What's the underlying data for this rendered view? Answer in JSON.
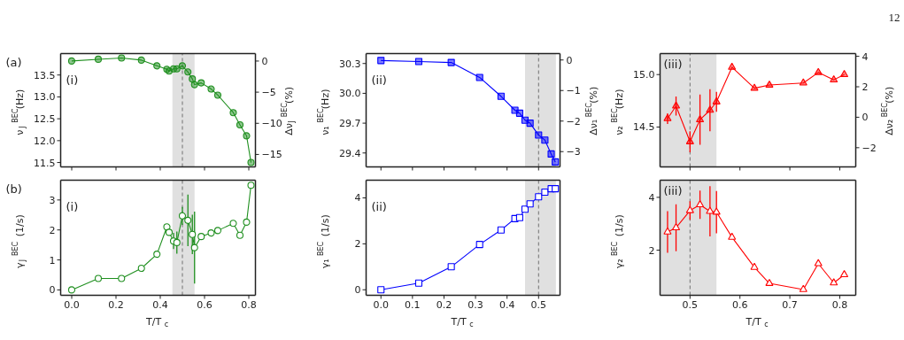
{
  "chart_data": [
    {
      "type": "line",
      "marker": "circle",
      "ylabel": "ν$_{J}$$^{BEC}$(Hz)",
      "y2label": "Δν$_{J}$$^{BEC}$(%)",
      "annotations": [
        "(a)",
        "(i)"
      ],
      "tick_labels": "y",
      "x": [
        0,
        0.12,
        0.225,
        0.315,
        0.385,
        0.43,
        0.44,
        0.46,
        0.475,
        0.5,
        0.525,
        0.545,
        0.555,
        0.585,
        0.63,
        0.66,
        0.73,
        0.76,
        0.79,
        0.81
      ],
      "series": [
        {
          "color": "#1f8f1f",
          "values": [
            13.82,
            13.86,
            13.89,
            13.84,
            13.71,
            13.63,
            13.59,
            13.64,
            13.64,
            13.71,
            13.57,
            13.41,
            13.28,
            13.32,
            13.18,
            13.04,
            12.64,
            12.36,
            12.11,
            11.5
          ]
        }
      ],
      "xlim": [
        -0.05,
        0.83
      ],
      "xticks": [
        {
          "value": 0,
          "label": null
        },
        {
          "value": 0.2,
          "label": null
        },
        {
          "value": 0.4,
          "label": null
        },
        {
          "value": 0.6,
          "label": null
        },
        {
          "value": 0.8,
          "label": null
        }
      ],
      "ylim": [
        11.4,
        13.99
      ],
      "yticks": [
        11.5,
        {
          "value": 12,
          "label": "12.0"
        },
        12.5,
        {
          "value": 13,
          "label": "13.0"
        },
        13.5
      ],
      "y2lim": [
        -17.0,
        1.2
      ],
      "y2ticks": [
        0,
        {
          "value": -5,
          "label": "−5"
        },
        {
          "value": -10,
          "label": "−10"
        },
        {
          "value": -15,
          "label": "−15"
        }
      ],
      "bands": [
        {
          "axis": "x",
          "from": 0.455,
          "to": 0.555,
          "color": "#e0e0e0"
        }
      ],
      "ref_lines": [
        {
          "axis": "x",
          "value": 0.5,
          "color": "#707070",
          "line_style": "dashed"
        }
      ]
    },
    {
      "type": "line",
      "marker": "square",
      "ylabel": "ν₁$^{BEC}$(Hz)",
      "y2label": "Δν₁$^{BEC}$(%)",
      "annotations": [
        "(ii)"
      ],
      "tick_labels": "y",
      "x": [
        0,
        0.12,
        0.223,
        0.313,
        0.381,
        0.425,
        0.44,
        0.457,
        0.473,
        0.5,
        0.52,
        0.54,
        0.553
      ],
      "series": [
        {
          "color": "#0000ff",
          "values": [
            30.33,
            30.32,
            30.31,
            30.16,
            29.97,
            29.83,
            29.8,
            29.73,
            29.7,
            29.58,
            29.53,
            29.39,
            29.31
          ]
        }
      ],
      "xlim": [
        -0.047,
        0.568
      ],
      "xticks": [
        {
          "value": 0,
          "label": null
        },
        {
          "value": 0.1,
          "label": null
        },
        {
          "value": 0.2,
          "label": null
        },
        {
          "value": 0.3,
          "label": null
        },
        {
          "value": 0.4,
          "label": null
        },
        {
          "value": 0.5,
          "label": null
        }
      ],
      "ylim": [
        29.26,
        30.4
      ],
      "yticks": [
        29.4,
        29.7,
        {
          "value": 30,
          "label": "30.0"
        },
        30.3
      ],
      "y2lim": [
        -3.5,
        0.21
      ],
      "y2ticks": [
        0,
        {
          "value": -1,
          "label": "−1"
        },
        {
          "value": -2,
          "label": "−2"
        },
        {
          "value": -3,
          "label": "−3"
        }
      ],
      "bands": [
        {
          "axis": "x",
          "from": 0.457,
          "to": 0.555,
          "color": "#e0e0e0"
        }
      ],
      "ref_lines": [
        {
          "axis": "x",
          "value": 0.5,
          "color": "#707070",
          "line_style": "dashed"
        }
      ]
    },
    {
      "type": "line",
      "marker": "triangle",
      "ylabel": "ν₂$^{BEC}$(Hz)",
      "y2label": "Δν₂$^{BEC}$(%)",
      "annotations": [
        "(iii)",
        "12"
      ],
      "tick_labels": "y",
      "x": [
        0.455,
        0.472,
        0.5,
        0.52,
        0.54,
        0.553,
        0.584,
        0.629,
        0.659,
        0.727,
        0.757,
        0.788,
        0.809
      ],
      "series": [
        {
          "color": "#ff0000",
          "values": [
            14.58,
            14.7,
            14.36,
            14.57,
            14.66,
            14.74,
            15.07,
            14.87,
            14.9,
            14.92,
            15.02,
            14.95,
            15.0
          ],
          "errors": [
            0.05,
            0.09,
            0.1,
            0.24,
            0.2,
            0.095,
            null,
            null,
            null,
            null,
            null,
            null,
            null
          ]
        }
      ],
      "xlim": [
        0.44,
        0.832
      ],
      "xticks": [
        {
          "value": 0.5,
          "label": null
        },
        {
          "value": 0.6,
          "label": null
        },
        {
          "value": 0.7,
          "label": null
        },
        {
          "value": 0.8,
          "label": null
        }
      ],
      "ylim": [
        14.12,
        15.2
      ],
      "yticks": [
        14.5,
        {
          "value": 15,
          "label": "15.0"
        }
      ],
      "y2lim": [
        -3.26,
        4.18
      ],
      "y2ticks": [
        4,
        2,
        0,
        {
          "value": -2,
          "label": "−2"
        }
      ],
      "bands": [
        {
          "axis": "x",
          "from": 0.44,
          "to": 0.553,
          "color": "#e0e0e0"
        }
      ],
      "ref_lines": [
        {
          "axis": "x",
          "value": 0.5,
          "color": "#707070",
          "line_style": "dashed"
        }
      ]
    },
    {
      "type": "line",
      "marker": "circle",
      "ylabel": "γ$_{J}$$^{BEC}$ (1/s)",
      "xlabel": "T/T$_{c}$",
      "annotations": [
        "(b)",
        "(i)"
      ],
      "x": [
        0,
        0.12,
        0.225,
        0.315,
        0.385,
        0.43,
        0.44,
        0.46,
        0.475,
        0.5,
        0.525,
        0.545,
        0.555,
        0.585,
        0.63,
        0.66,
        0.73,
        0.76,
        0.79,
        0.81
      ],
      "series": [
        {
          "color": "#1f8f1f",
          "values": [
            0,
            0.38,
            0.38,
            0.72,
            1.19,
            2.1,
            1.92,
            1.63,
            1.58,
            2.47,
            2.32,
            1.85,
            1.41,
            1.78,
            1.9,
            1.98,
            2.22,
            1.82,
            2.26,
            3.49
          ],
          "errors": [
            null,
            null,
            null,
            null,
            null,
            null,
            null,
            0.27,
            0.37,
            0.3,
            0.86,
            0.66,
            1.2,
            null,
            null,
            null,
            null,
            null,
            null,
            null
          ]
        }
      ],
      "xlim": [
        -0.05,
        0.83
      ],
      "xticks": [
        {
          "value": 0,
          "label": "0.0"
        },
        0.2,
        0.4,
        0.6,
        0.8
      ],
      "ylim": [
        -0.18,
        3.66
      ],
      "yticks": [
        0,
        1,
        2,
        3
      ],
      "bands": [
        {
          "axis": "x",
          "from": 0.455,
          "to": 0.555,
          "color": "#e0e0e0"
        }
      ],
      "ref_lines": [
        {
          "axis": "x",
          "value": 0.5,
          "color": "#707070",
          "line_style": "dashed"
        }
      ]
    },
    {
      "type": "line",
      "marker": "square",
      "ylabel": "γ₁$^{BEC}$ (1/s)",
      "xlabel": "T/T$_{c}$",
      "annotations": [
        "(ii)"
      ],
      "x": [
        0,
        0.12,
        0.223,
        0.313,
        0.381,
        0.425,
        0.44,
        0.457,
        0.473,
        0.5,
        0.52,
        0.54,
        0.553
      ],
      "series": [
        {
          "color": "#0000ff",
          "values": [
            0,
            0.29,
            1.0,
            1.97,
            2.6,
            3.1,
            3.14,
            3.51,
            3.74,
            4.05,
            4.25,
            4.4,
            4.4
          ]
        }
      ],
      "xlim": [
        -0.047,
        0.568
      ],
      "xticks": [
        {
          "value": 0,
          "label": "0.0"
        },
        0.1,
        0.2,
        0.3,
        0.4,
        0.5
      ],
      "ylim": [
        -0.24,
        4.77
      ],
      "yticks": [
        0,
        2,
        4
      ],
      "bands": [
        {
          "axis": "x",
          "from": 0.457,
          "to": 0.555,
          "color": "#e0e0e0"
        }
      ],
      "ref_lines": [
        {
          "axis": "x",
          "value": 0.5,
          "color": "#707070",
          "line_style": "dashed"
        }
      ]
    },
    {
      "type": "line",
      "marker": "triangle",
      "ylabel": "γ₂$^{BEC}$ (1/s)",
      "xlabel": "T/T$_{c}$",
      "annotations": [
        "(iii)"
      ],
      "x": [
        0.455,
        0.472,
        0.5,
        0.52,
        0.54,
        0.553,
        0.584,
        0.629,
        0.659,
        0.727,
        0.757,
        0.788,
        0.809
      ],
      "series": [
        {
          "color": "#ff0000",
          "values": [
            2.69,
            2.85,
            3.5,
            3.72,
            3.47,
            3.44,
            2.49,
            1.35,
            0.74,
            0.51,
            1.49,
            0.76,
            1.07
          ],
          "errors": [
            0.79,
            0.89,
            0.35,
            0.54,
            0.95,
            0.8,
            null,
            null,
            null,
            null,
            null,
            null,
            null
          ]
        }
      ],
      "xlim": [
        0.44,
        0.832
      ],
      "xticks": [
        0.5,
        0.6,
        0.7,
        0.8
      ],
      "ylim": [
        0.29,
        4.65
      ],
      "yticks": [
        2,
        4
      ],
      "bands": [
        {
          "axis": "x",
          "from": 0.44,
          "to": 0.553,
          "color": "#e0e0e0"
        }
      ],
      "ref_lines": [
        {
          "axis": "x",
          "value": 0.5,
          "color": "#707070",
          "line_style": "dashed"
        }
      ]
    }
  ]
}
